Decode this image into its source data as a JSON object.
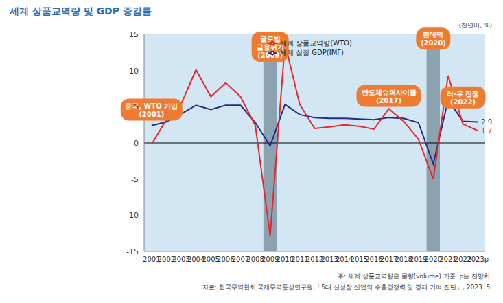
{
  "chart_data": {
    "type": "line",
    "title": "세계 상품교역량 및 GDP 증감률",
    "unit_label": "(전년비, %)",
    "categories": [
      "2001",
      "2002",
      "2003",
      "2004",
      "2005",
      "2006",
      "2007",
      "2008",
      "2009",
      "2010",
      "2011",
      "2012",
      "2013",
      "2014",
      "2015",
      "2016",
      "2017",
      "2018",
      "2019",
      "2020",
      "2021",
      "2022",
      "2023p"
    ],
    "series": [
      {
        "name": "세계 실질 GDP(IMF)",
        "color": "#1f2f86",
        "values": [
          2.4,
          2.9,
          4.0,
          5.2,
          4.6,
          5.2,
          5.2,
          2.8,
          -0.4,
          5.3,
          3.9,
          3.5,
          3.4,
          3.4,
          3.3,
          3.2,
          3.5,
          3.4,
          2.8,
          -2.9,
          5.9,
          3.0,
          2.9
        ],
        "value_labels": [
          null,
          null,
          null,
          null,
          null,
          null,
          null,
          null,
          null,
          null,
          null,
          null,
          null,
          null,
          null,
          null,
          null,
          null,
          null,
          null,
          null,
          null,
          "2.9"
        ]
      },
      {
        "name": "세계 상품교역량(WTO)",
        "color": "#e8252b",
        "values": [
          -0.2,
          3.2,
          5.4,
          10.1,
          6.4,
          8.3,
          6.4,
          2.4,
          -12.8,
          13.7,
          5.3,
          2.0,
          2.2,
          2.5,
          2.3,
          1.9,
          4.7,
          3.0,
          0.5,
          -5.0,
          9.3,
          2.6,
          1.7
        ],
        "value_labels": [
          null,
          null,
          null,
          null,
          null,
          null,
          null,
          null,
          null,
          null,
          null,
          null,
          null,
          null,
          null,
          null,
          null,
          null,
          null,
          null,
          null,
          null,
          "1.7"
        ]
      }
    ],
    "ylim": [
      -15,
      15
    ],
    "yticks": [
      -15,
      -10,
      -5,
      0,
      5,
      10,
      15
    ],
    "grid": false,
    "legend": "top",
    "shaded": [
      "2009",
      "2020"
    ],
    "annotations": [
      {
        "x": "2001",
        "lines": [
          "중국, WTO 가입",
          "(2001)"
        ]
      },
      {
        "x": "2009",
        "lines": [
          "글로벌",
          "금융위기",
          "(2009)"
        ]
      },
      {
        "x": "2017",
        "lines": [
          "반도체슈퍼사이클",
          "(2017)"
        ]
      },
      {
        "x": "2020",
        "lines": [
          "팬데믹",
          "(2020)"
        ]
      },
      {
        "x": "2022",
        "lines": [
          "러-우 전쟁",
          "(2022)"
        ]
      }
    ],
    "notes": [
      "주: 세계 상품교역량은 물량(volume) 기준. p는 전망치.",
      "자료: 한국무역협회 국제무역통상연구원,「5대 신성장 산업의 수출경쟁력 및 경제 기여 진단」, 2023. 5."
    ]
  }
}
